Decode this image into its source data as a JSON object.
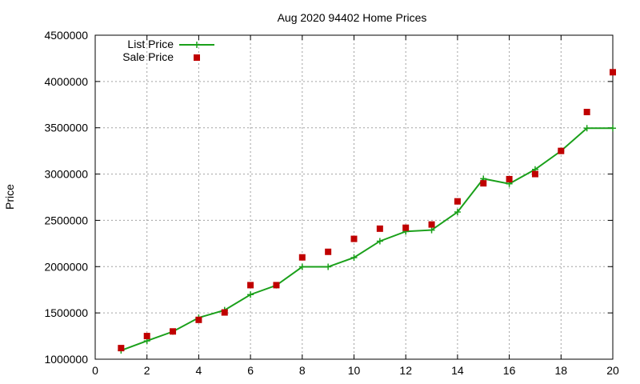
{
  "chart_data": {
    "type": "line",
    "title": "Aug 2020 94402 Home Prices",
    "xlabel": "",
    "ylabel": "Price",
    "xlim": [
      0,
      20
    ],
    "ylim": [
      1000000,
      4500000
    ],
    "xticks": [
      0,
      2,
      4,
      6,
      8,
      10,
      12,
      14,
      16,
      18,
      20
    ],
    "yticks": [
      1000000,
      1500000,
      2000000,
      2500000,
      3000000,
      3500000,
      4000000,
      4500000
    ],
    "grid": true,
    "legend_position": "top-left",
    "series": [
      {
        "name": "List Price",
        "style": "line+cross",
        "color": "#1aa01a",
        "x": [
          1,
          2,
          3,
          4,
          5,
          6,
          7,
          8,
          9,
          10,
          11,
          12,
          13,
          14,
          15,
          16,
          17,
          18,
          19,
          20
        ],
        "y": [
          1095000,
          1198000,
          1298000,
          1448000,
          1530000,
          1698000,
          1798000,
          1998000,
          1998000,
          2098000,
          2275000,
          2380000,
          2395000,
          2590000,
          2950000,
          2895000,
          3050000,
          3250000,
          3495000,
          3495000
        ]
      },
      {
        "name": "Sale Price",
        "style": "square",
        "color": "#c00000",
        "x": [
          1,
          2,
          3,
          4,
          5,
          6,
          7,
          8,
          9,
          10,
          11,
          12,
          13,
          14,
          15,
          16,
          17,
          18,
          19,
          20
        ],
        "y": [
          1120000,
          1250000,
          1300000,
          1425000,
          1505000,
          1800000,
          1800000,
          2100000,
          2160000,
          2300000,
          2410000,
          2420000,
          2455000,
          2705000,
          2900000,
          2945000,
          3000000,
          3250000,
          3670000,
          4100000
        ]
      }
    ]
  }
}
